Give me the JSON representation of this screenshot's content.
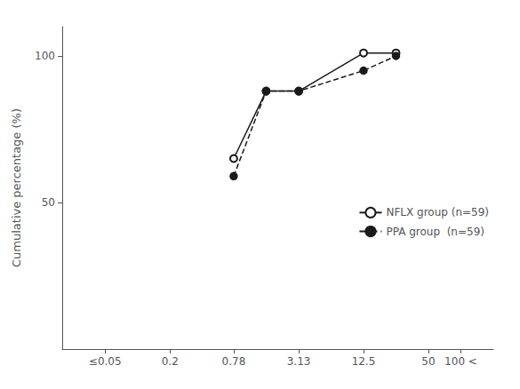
{
  "chart_data": {
    "type": "line",
    "ylabel": "Cumulative percentage (%)",
    "log": "x",
    "x": [
      0.78,
      1.56,
      3.13,
      12.5,
      25
    ],
    "xlim": [
      0.02,
      200
    ],
    "xticks": [
      {
        "value": 0.05,
        "label": "≤0.05"
      },
      0.2,
      0.78,
      3.13,
      12.5,
      50,
      {
        "value": 100,
        "label": "100 <"
      }
    ],
    "ylim": [
      0,
      110
    ],
    "yticks": [
      50,
      100
    ],
    "grid": false,
    "legend": "right",
    "color": "#1a1a1a",
    "series": [
      {
        "name": "NFLX group (n=59)",
        "values": [
          65,
          88,
          88,
          101,
          101
        ],
        "line_style": "solid",
        "marker": "open_circle"
      },
      {
        "name": "PPA group  (n=59)",
        "values": [
          59,
          88,
          88,
          95,
          100
        ],
        "line_style": "dashed",
        "marker": "circle"
      }
    ]
  }
}
